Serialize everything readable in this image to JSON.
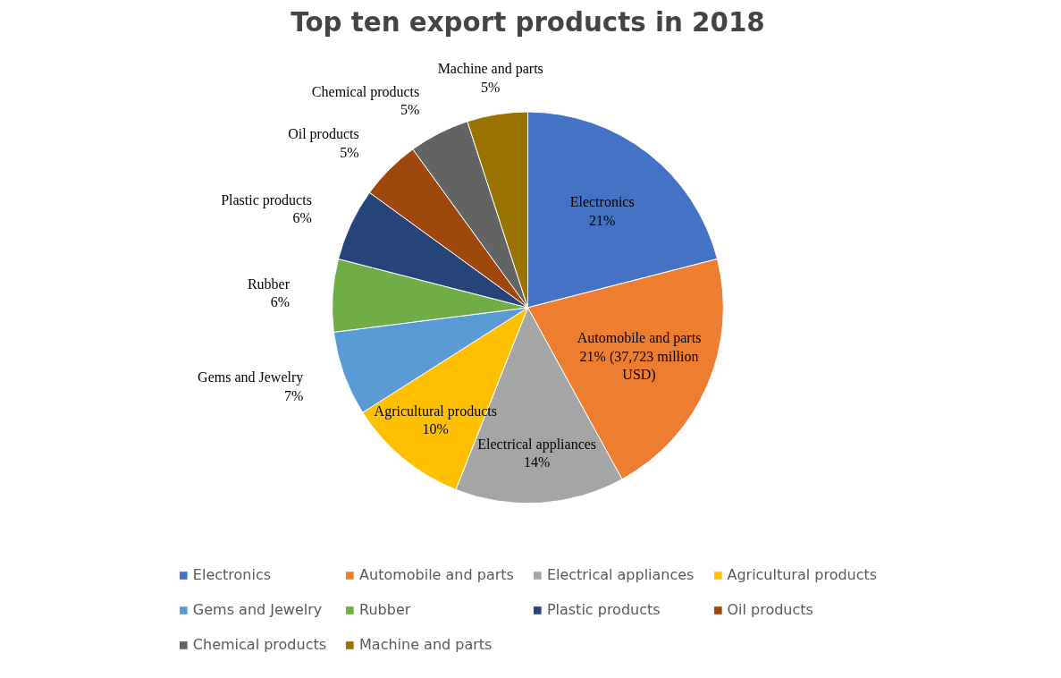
{
  "chart_data": {
    "type": "pie",
    "title": "Top ten export products in 2018",
    "categories": [
      "Electronics",
      "Automobile and parts",
      "Electrical appliances",
      "Agricultural products",
      "Gems and Jewelry",
      "Rubber",
      "Plastic products",
      "Oil products",
      "Chemical products",
      "Machine and parts"
    ],
    "values": [
      21,
      21,
      14,
      10,
      7,
      6,
      6,
      5,
      5,
      5
    ],
    "value_labels": [
      "21%",
      "21% (37,723 million USD)",
      "14%",
      "10%",
      "7%",
      "6%",
      "6%",
      "5%",
      "5%",
      "5%"
    ],
    "colors": [
      "#4472c4",
      "#ed7d31",
      "#a5a5a5",
      "#ffc000",
      "#5b9bd5",
      "#70ad47",
      "#264478",
      "#9e480e",
      "#636363",
      "#997300"
    ],
    "legend": "bottom"
  }
}
